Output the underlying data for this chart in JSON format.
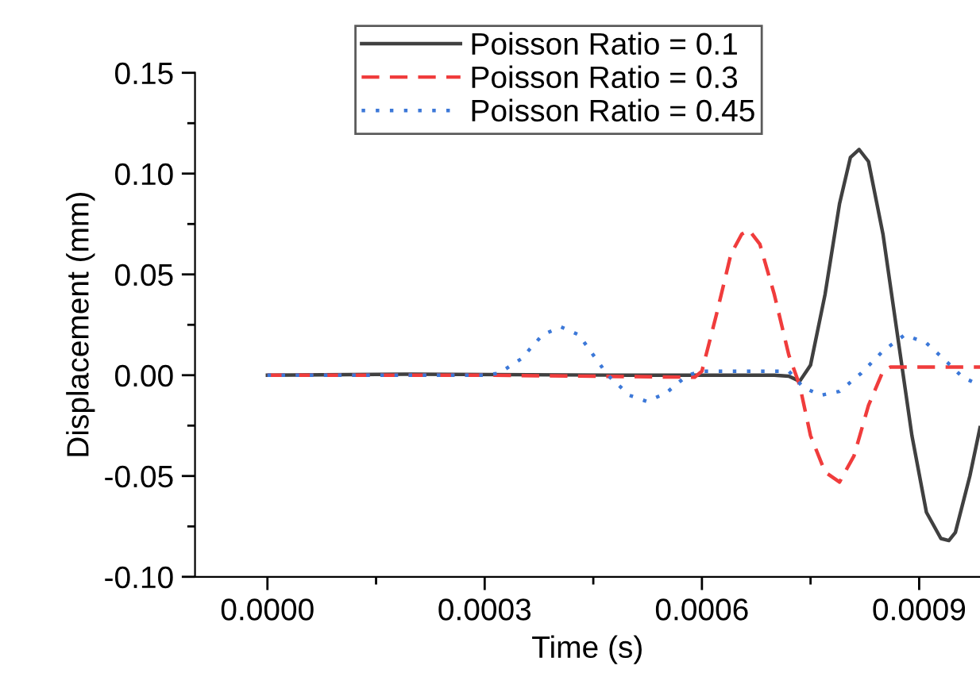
{
  "chart_data": {
    "type": "line",
    "xlabel": "Time (s)",
    "ylabel": "Displacement (mm)",
    "xlim": [
      -0.0001,
      0.000984
    ],
    "xticks": [
      {
        "value": 0,
        "label": "0.0000"
      },
      {
        "value": 0.0003,
        "label": "0.0003"
      },
      {
        "value": 0.0006,
        "label": "0.0006"
      },
      {
        "value": 0.0009,
        "label": "0.0009"
      }
    ],
    "ylim": [
      -0.1,
      0.15
    ],
    "yticks": [
      {
        "value": -0.1,
        "label": "-0.10"
      },
      {
        "value": -0.05,
        "label": "-0.05"
      },
      {
        "value": 0,
        "label": "0.00"
      },
      {
        "value": 0.05,
        "label": "0.05"
      },
      {
        "value": 0.1,
        "label": "0.10"
      },
      {
        "value": 0.15,
        "label": "0.15"
      }
    ],
    "grid": false,
    "legend": "top",
    "marker": "none",
    "series": [
      {
        "name": "Poisson Ratio = 0.1",
        "color": "#404040",
        "line_style": "solid",
        "x": [
          0,
          0.0002,
          0.0005,
          0.0007,
          0.00072,
          0.000735,
          0.00075,
          0.00077,
          0.00079,
          0.000805,
          0.000817,
          0.00083,
          0.00085,
          0.00087,
          0.00089,
          0.00091,
          0.00093,
          0.000941,
          0.00095,
          0.00097,
          0.000984
        ],
        "values": [
          0,
          0.0005,
          0,
          0,
          -0.0005,
          -0.003,
          0.005,
          0.04,
          0.085,
          0.108,
          0.112,
          0.106,
          0.07,
          0.02,
          -0.03,
          -0.068,
          -0.081,
          -0.082,
          -0.078,
          -0.05,
          -0.026
        ]
      },
      {
        "name": "Poisson Ratio = 0.3",
        "color": "#f03c3c",
        "line_style": "dashed",
        "x": [
          0,
          0.0003,
          0.00059,
          0.0006,
          0.00062,
          0.00064,
          0.000655,
          0.000665,
          0.00068,
          0.0007,
          0.00072,
          0.000735,
          0.00075,
          0.00077,
          0.00079,
          0.00081,
          0.00083,
          0.00085,
          0.00086,
          0.000984
        ],
        "values": [
          0,
          0,
          -0.001,
          0.002,
          0.03,
          0.06,
          0.07,
          0.072,
          0.065,
          0.04,
          0.01,
          -0.005,
          -0.03,
          -0.048,
          -0.053,
          -0.04,
          -0.015,
          0.002,
          0.004,
          0.004
        ]
      },
      {
        "name": "Poisson Ratio = 0.45",
        "color": "#3c78d8",
        "line_style": "dotted",
        "x": [
          0,
          0.0003,
          0.00032,
          0.00035,
          0.00038,
          0.000405,
          0.00043,
          0.00045,
          0.00047,
          0.0005,
          0.000524,
          0.00055,
          0.00058,
          0.0006,
          0.00072,
          0.00074,
          0.000764,
          0.00079,
          0.00082,
          0.00085,
          0.00088,
          0.00091,
          0.00094,
          0.00096,
          0.000984
        ],
        "values": [
          0,
          0,
          0.001,
          0.008,
          0.02,
          0.024,
          0.02,
          0.01,
          0,
          -0.01,
          -0.013,
          -0.009,
          0,
          0.002,
          0.002,
          -0.006,
          -0.01,
          -0.008,
          0.001,
          0.012,
          0.02,
          0.016,
          0.006,
          -0.001,
          -0.005
        ]
      }
    ]
  }
}
